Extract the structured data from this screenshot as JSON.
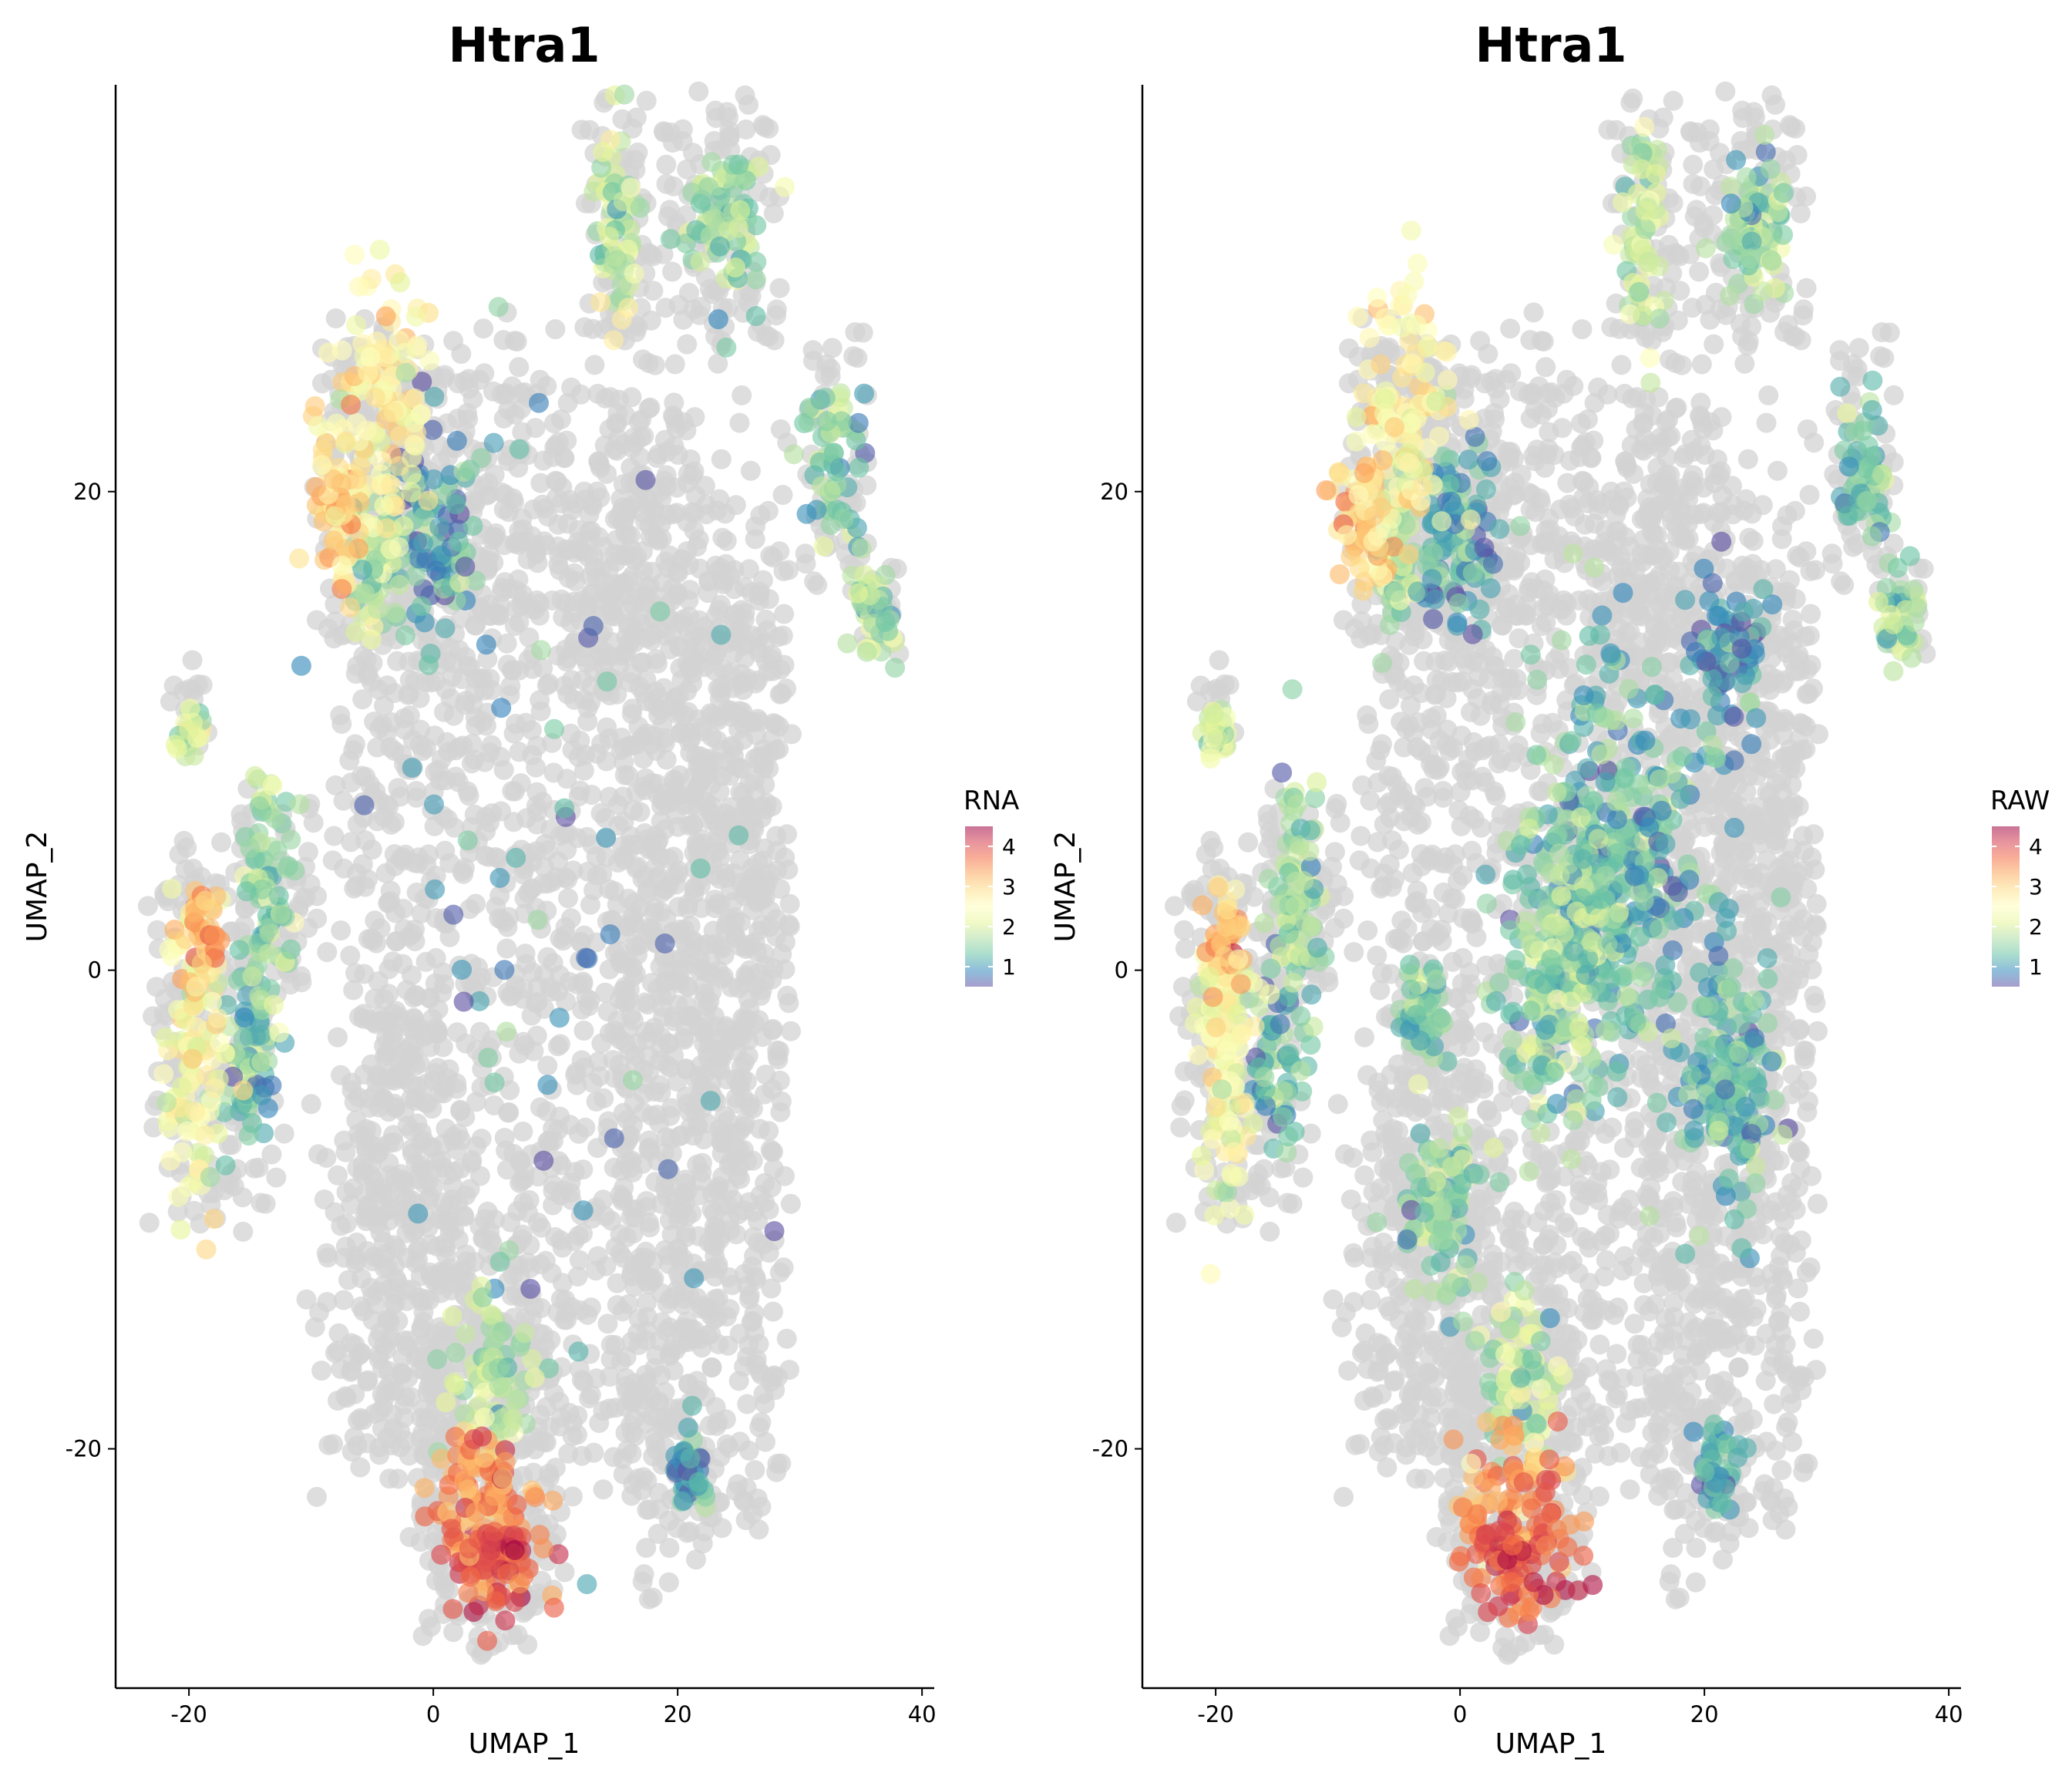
{
  "chart_data": [
    {
      "type": "scatter",
      "title": "Htra1",
      "xlabel": "UMAP_1",
      "ylabel": "UMAP_2",
      "xlim": [
        -26,
        41
      ],
      "ylim": [
        -30,
        37
      ],
      "xticks": [
        -20,
        0,
        20,
        40
      ],
      "yticks": [
        -20,
        0,
        20
      ],
      "xtick_labels": [
        "-20",
        "0",
        "20",
        "40"
      ],
      "ytick_labels": [
        "-20",
        "0",
        "20"
      ],
      "grid": false,
      "legend": {
        "title": "RNA",
        "placement": "right",
        "range": [
          0.5,
          4.5
        ],
        "ticks": [
          "1",
          "2",
          "3",
          "4"
        ],
        "colormap": "Spectral (reversed)"
      },
      "background_color": "#d3d3d3",
      "background_clusters": [
        [
          -5,
          21,
          5,
          7
        ],
        [
          -18,
          -3,
          6,
          9
        ],
        [
          -20,
          11,
          2,
          2
        ],
        [
          -13,
          3,
          4,
          5
        ],
        [
          -2,
          -3,
          4,
          3
        ],
        [
          -2,
          -12,
          6,
          10
        ],
        [
          5,
          -20,
          6,
          9
        ],
        [
          4,
          -24,
          6,
          5
        ],
        [
          1,
          20,
          8,
          8
        ],
        [
          7,
          1,
          18,
          26
        ],
        [
          14,
          19,
          5,
          6
        ],
        [
          15,
          31,
          3,
          7
        ],
        [
          23,
          31,
          6,
          6
        ],
        [
          22,
          -1,
          8,
          26
        ],
        [
          33,
          21,
          3,
          6
        ],
        [
          37,
          15,
          2,
          2
        ],
        [
          21,
          -21,
          3,
          3
        ],
        [
          25,
          4,
          5,
          16
        ]
      ],
      "expressing_clusters": [
        {
          "center": [
            -4.5,
            23
          ],
          "spread": [
            3.5,
            5
          ],
          "value": 2.6
        },
        {
          "center": [
            -8,
            19
          ],
          "spread": [
            2,
            3
          ],
          "value": 3.0
        },
        {
          "center": [
            -5,
            17
          ],
          "spread": [
            2,
            3
          ],
          "value": 1.8
        },
        {
          "center": [
            0,
            18
          ],
          "spread": [
            3,
            4
          ],
          "value": 1.1
        },
        {
          "center": [
            -20,
            10
          ],
          "spread": [
            1,
            1
          ],
          "value": 2.0
        },
        {
          "center": [
            -19.5,
            -4
          ],
          "spread": [
            2.5,
            6
          ],
          "value": 2.4
        },
        {
          "center": [
            -19,
            1.5
          ],
          "spread": [
            1.5,
            2
          ],
          "value": 3.2
        },
        {
          "center": [
            -15,
            -4
          ],
          "spread": [
            2,
            3
          ],
          "value": 1.3
        },
        {
          "center": [
            -13.5,
            3
          ],
          "spread": [
            2,
            5
          ],
          "value": 1.6
        },
        {
          "center": [
            15,
            31
          ],
          "spread": [
            1.5,
            4.5
          ],
          "value": 1.9
        },
        {
          "center": [
            24,
            31
          ],
          "spread": [
            3,
            3
          ],
          "value": 1.7
        },
        {
          "center": [
            33,
            21
          ],
          "spread": [
            2,
            3
          ],
          "value": 1.4
        },
        {
          "center": [
            36,
            15
          ],
          "spread": [
            1.5,
            2
          ],
          "value": 1.7
        },
        {
          "center": [
            4,
            -22
          ],
          "spread": [
            4,
            3
          ],
          "value": 3.4
        },
        {
          "center": [
            5,
            -24.5
          ],
          "spread": [
            4,
            2.5
          ],
          "value": 3.9
        },
        {
          "center": [
            5,
            -17
          ],
          "spread": [
            3,
            3
          ],
          "value": 1.9
        },
        {
          "center": [
            21,
            -21
          ],
          "spread": [
            1.5,
            2
          ],
          "value": 1.1
        },
        {
          "center": [
            8,
            3
          ],
          "spread": [
            16,
            22
          ],
          "value": 1.0,
          "sparse": true
        }
      ]
    },
    {
      "type": "scatter",
      "title": "Htra1",
      "xlabel": "UMAP_1",
      "ylabel": "UMAP_2",
      "xlim": [
        -26,
        41
      ],
      "ylim": [
        -30,
        37
      ],
      "xticks": [
        -20,
        0,
        20,
        40
      ],
      "yticks": [
        -20,
        0,
        20
      ],
      "xtick_labels": [
        "-20",
        "0",
        "20",
        "40"
      ],
      "ytick_labels": [
        "-20",
        "0",
        "20"
      ],
      "grid": false,
      "legend": {
        "title": "RAW",
        "placement": "right",
        "range": [
          0.5,
          4.5
        ],
        "ticks": [
          "1",
          "2",
          "3",
          "4"
        ],
        "colormap": "Spectral (reversed)"
      },
      "background_color": "#d3d3d3",
      "background_clusters": [
        [
          -5,
          21,
          5,
          7
        ],
        [
          -18,
          -3,
          6,
          9
        ],
        [
          -20,
          11,
          2,
          2
        ],
        [
          -13,
          3,
          4,
          5
        ],
        [
          -2,
          -3,
          4,
          3
        ],
        [
          -2,
          -12,
          6,
          10
        ],
        [
          5,
          -20,
          6,
          9
        ],
        [
          4,
          -24,
          6,
          5
        ],
        [
          1,
          20,
          8,
          8
        ],
        [
          7,
          1,
          18,
          26
        ],
        [
          14,
          19,
          5,
          6
        ],
        [
          15,
          31,
          3,
          7
        ],
        [
          23,
          31,
          6,
          6
        ],
        [
          22,
          -1,
          8,
          26
        ],
        [
          33,
          21,
          3,
          6
        ],
        [
          37,
          15,
          2,
          2
        ],
        [
          21,
          -21,
          3,
          3
        ],
        [
          25,
          4,
          5,
          16
        ]
      ],
      "expressing_clusters": [
        {
          "center": [
            -4.5,
            23
          ],
          "spread": [
            3.5,
            5
          ],
          "value": 2.6
        },
        {
          "center": [
            -8,
            19
          ],
          "spread": [
            2,
            3
          ],
          "value": 3.0
        },
        {
          "center": [
            -5,
            17
          ],
          "spread": [
            2,
            3
          ],
          "value": 1.8
        },
        {
          "center": [
            0,
            18
          ],
          "spread": [
            3,
            4
          ],
          "value": 1.1
        },
        {
          "center": [
            -20,
            10
          ],
          "spread": [
            1,
            1
          ],
          "value": 2.0
        },
        {
          "center": [
            -19.5,
            -4
          ],
          "spread": [
            2.5,
            6
          ],
          "value": 2.4
        },
        {
          "center": [
            -19,
            1.5
          ],
          "spread": [
            1.5,
            2
          ],
          "value": 3.2
        },
        {
          "center": [
            -15,
            -4
          ],
          "spread": [
            2,
            3
          ],
          "value": 1.3
        },
        {
          "center": [
            -13.5,
            3
          ],
          "spread": [
            2,
            5
          ],
          "value": 1.6
        },
        {
          "center": [
            15,
            31
          ],
          "spread": [
            1.5,
            4.5
          ],
          "value": 1.9
        },
        {
          "center": [
            24,
            31
          ],
          "spread": [
            3,
            3
          ],
          "value": 1.7
        },
        {
          "center": [
            33,
            21
          ],
          "spread": [
            2,
            3
          ],
          "value": 1.4
        },
        {
          "center": [
            36,
            15
          ],
          "spread": [
            1.5,
            2
          ],
          "value": 1.7
        },
        {
          "center": [
            4,
            -22
          ],
          "spread": [
            4,
            3
          ],
          "value": 3.4
        },
        {
          "center": [
            5,
            -24.5
          ],
          "spread": [
            4,
            2.5
          ],
          "value": 3.9
        },
        {
          "center": [
            5,
            -17
          ],
          "spread": [
            3,
            3
          ],
          "value": 1.9
        },
        {
          "center": [
            21,
            -21
          ],
          "spread": [
            1.5,
            2
          ],
          "value": 1.1
        },
        {
          "center": [
            13,
            4
          ],
          "spread": [
            7,
            8
          ],
          "value": 1.3
        },
        {
          "center": [
            8,
            0
          ],
          "spread": [
            5,
            6
          ],
          "value": 1.6
        },
        {
          "center": [
            22,
            -5
          ],
          "spread": [
            4,
            5
          ],
          "value": 1.3
        },
        {
          "center": [
            22,
            13
          ],
          "spread": [
            3,
            3
          ],
          "value": 1.0
        },
        {
          "center": [
            -1,
            -10
          ],
          "spread": [
            3,
            4
          ],
          "value": 1.5
        },
        {
          "center": [
            -3,
            -2
          ],
          "spread": [
            2,
            2
          ],
          "value": 1.5
        }
      ]
    }
  ]
}
